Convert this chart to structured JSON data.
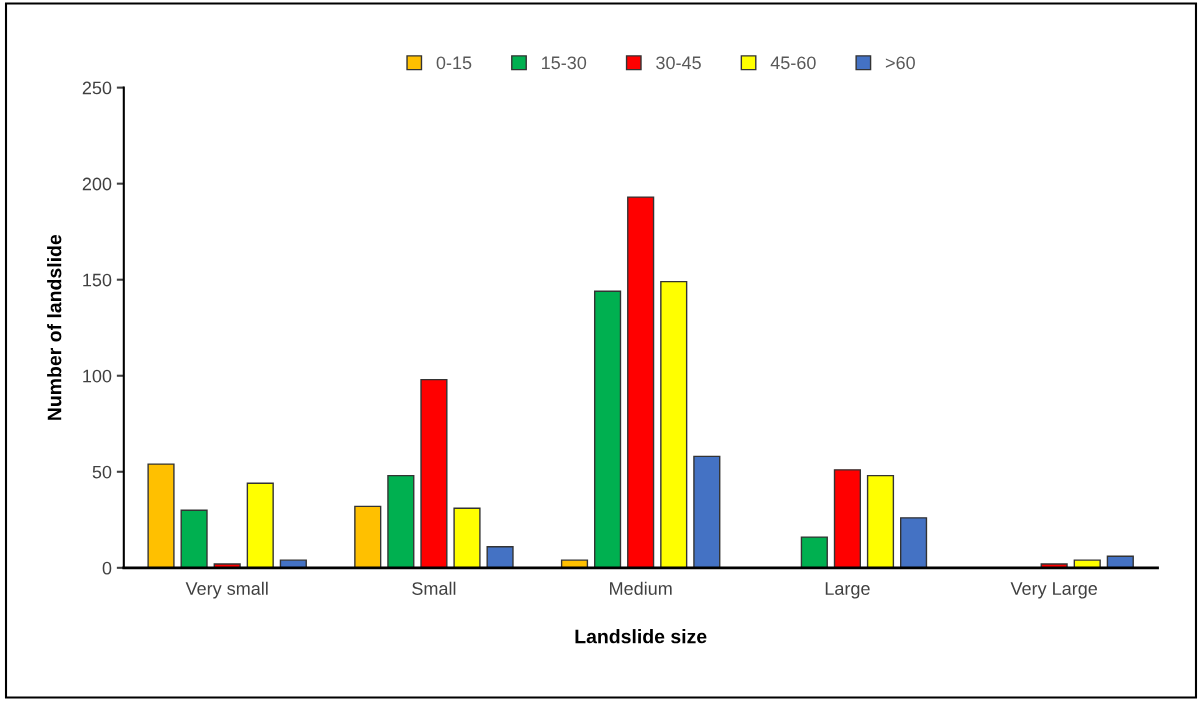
{
  "chart_data": {
    "type": "bar",
    "xlabel": "Landslide size",
    "ylabel": "Number of landslide",
    "categories": [
      "Very small",
      "Small",
      "Medium",
      "Large",
      "Very Large"
    ],
    "series": [
      {
        "name": "0-15",
        "color": "#ffc000",
        "values": [
          54,
          32,
          4,
          0,
          0
        ]
      },
      {
        "name": "15-30",
        "color": "#00b050",
        "values": [
          30,
          48,
          144,
          16,
          0
        ]
      },
      {
        "name": "30-45",
        "color": "#ff0000",
        "values": [
          2,
          98,
          193,
          51,
          2
        ]
      },
      {
        "name": "45-60",
        "color": "#ffff00",
        "values": [
          44,
          31,
          149,
          48,
          4
        ]
      },
      {
        "name": ">60",
        "color": "#4472c4",
        "values": [
          4,
          11,
          58,
          26,
          6
        ]
      }
    ],
    "ylim": [
      0,
      250
    ],
    "yticks": [
      0,
      50,
      100,
      150,
      200,
      250
    ],
    "grid": false,
    "legend": "top"
  }
}
